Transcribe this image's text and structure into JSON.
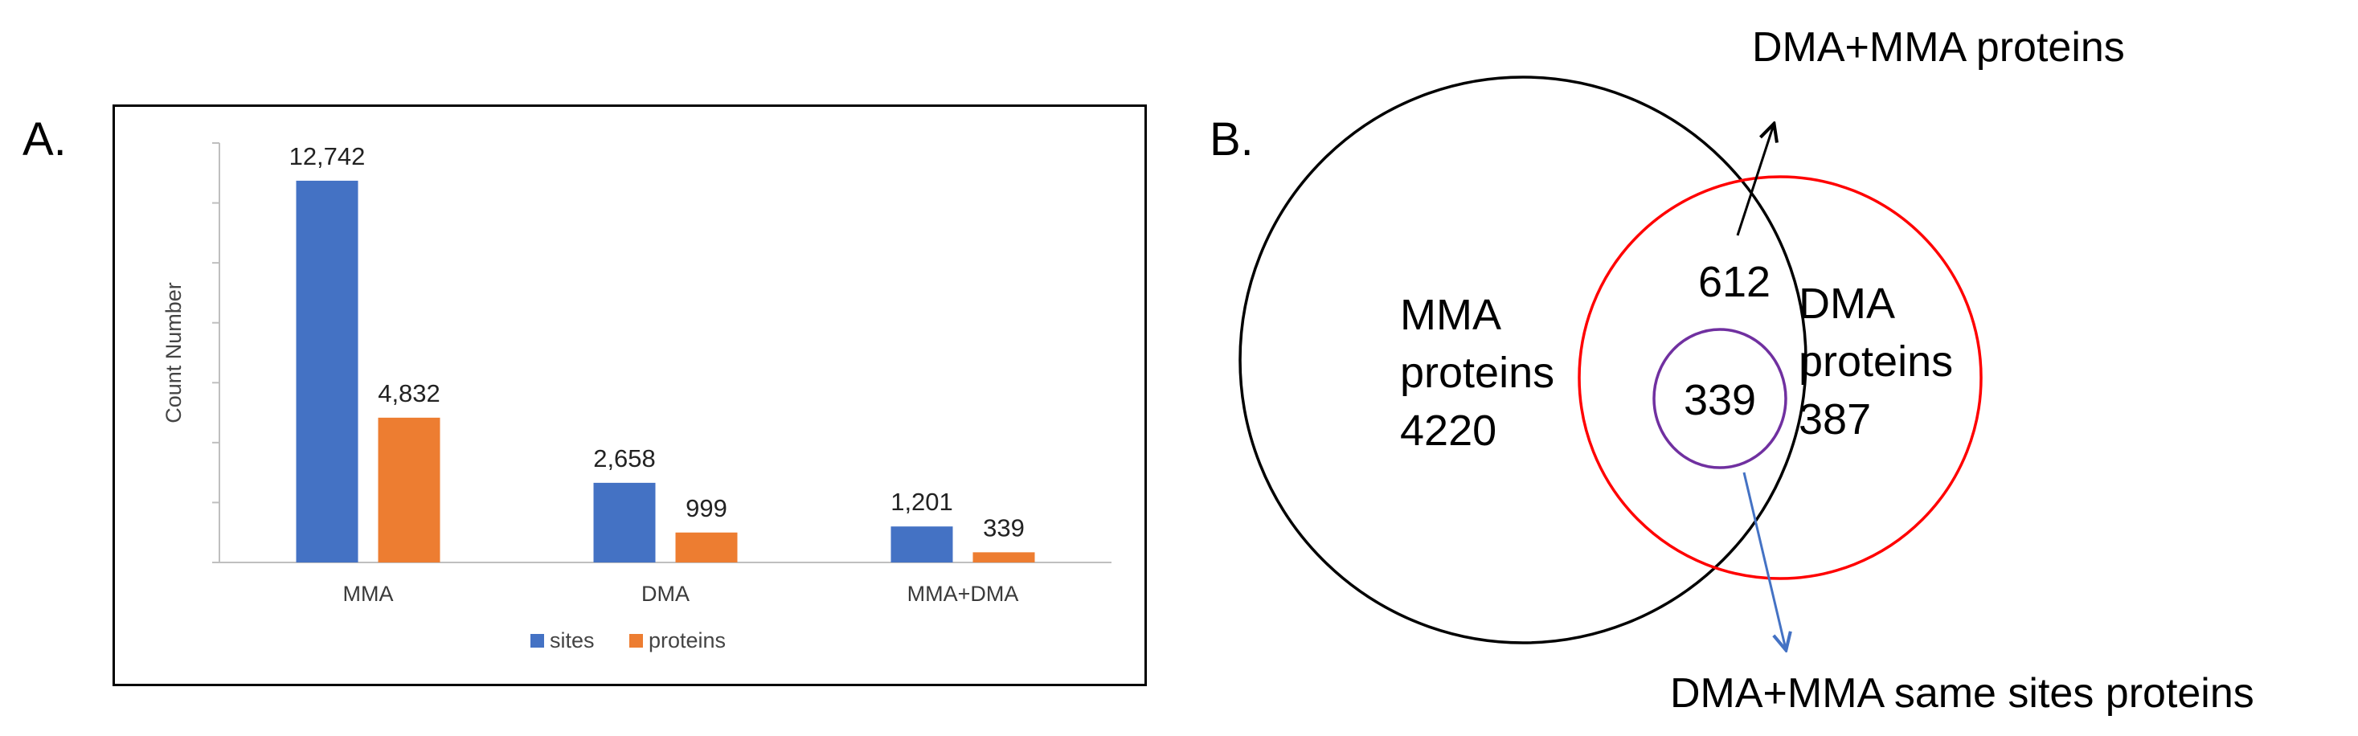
{
  "panels": {
    "a_label": "A.",
    "b_label": "B."
  },
  "chart_data": [
    {
      "type": "bar",
      "title": "",
      "xlabel": "",
      "ylabel": "Count Number",
      "ylim": [
        0,
        14000
      ],
      "grid": false,
      "legend": "bottom",
      "categories": [
        "MMA",
        "DMA",
        "MMA+DMA"
      ],
      "series": [
        {
          "name": "sites",
          "color": "#4472C4",
          "values": [
            12742,
            2658,
            1201
          ],
          "labels": [
            "12,742",
            "2,658",
            "1,201"
          ]
        },
        {
          "name": "proteins",
          "color": "#ED7D31",
          "values": [
            4832,
            999,
            339
          ],
          "labels": [
            "4,832",
            "999",
            "339"
          ]
        }
      ]
    },
    {
      "type": "venn",
      "sets": [
        {
          "name_line1": "MMA",
          "name_line2": "proteins",
          "value": "4220",
          "color": "#000000"
        },
        {
          "name_line1": "DMA",
          "name_line2": "proteins",
          "value": "387",
          "color": "#FF0000"
        }
      ],
      "overlap": {
        "value": "612"
      },
      "inner": {
        "value": "339",
        "color": "#7030A0"
      },
      "callouts": [
        {
          "text": "DMA+MMA proteins",
          "arrow_color": "#000000"
        },
        {
          "text": "DMA+MMA same sites proteins",
          "arrow_color": "#4472C4"
        }
      ]
    }
  ]
}
